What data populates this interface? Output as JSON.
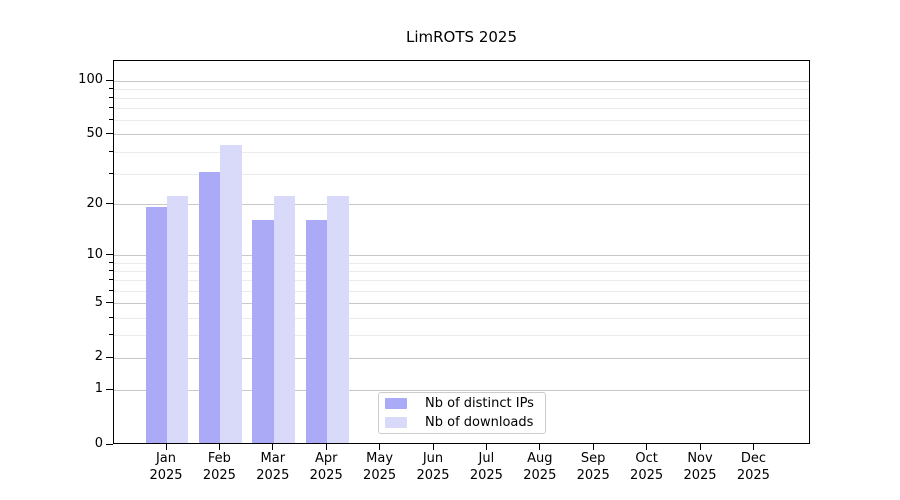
{
  "figure": {
    "title": "LimROTS 2025",
    "background": "#ffffff"
  },
  "chart_data": {
    "type": "bar",
    "title": "LimROTS 2025",
    "categories": [
      "Jan",
      "Feb",
      "Mar",
      "Apr",
      "May",
      "Jun",
      "Jul",
      "Aug",
      "Sep",
      "Oct",
      "Nov",
      "Dec"
    ],
    "category_year": "2025",
    "series": [
      {
        "name": "Nb of distinct IPs",
        "color": "#AAAAF7",
        "values": [
          19,
          30,
          16,
          16,
          null,
          null,
          null,
          null,
          null,
          null,
          null,
          null
        ]
      },
      {
        "name": "Nb of downloads",
        "color": "#D9D9F9",
        "values": [
          22,
          43,
          22,
          22,
          null,
          null,
          null,
          null,
          null,
          null,
          null,
          null
        ]
      }
    ],
    "y_axis": {
      "scale": "log10(value+1)",
      "major_ticks": [
        0,
        1,
        2,
        5,
        10,
        20,
        50,
        100
      ],
      "minor_ticks": [
        3,
        4,
        6,
        7,
        8,
        9,
        30,
        40,
        60,
        70,
        80,
        90
      ],
      "range": [
        0,
        129
      ]
    },
    "x_axis": {
      "months_shown": 12,
      "year_label": "2025"
    },
    "grid": {
      "major_color": "#c8c8c8",
      "minor_color": "#ebebeb"
    },
    "legend": {
      "position": "inside-bottom-center"
    },
    "colors": {
      "spine": "#000000",
      "text": "#000000"
    }
  }
}
